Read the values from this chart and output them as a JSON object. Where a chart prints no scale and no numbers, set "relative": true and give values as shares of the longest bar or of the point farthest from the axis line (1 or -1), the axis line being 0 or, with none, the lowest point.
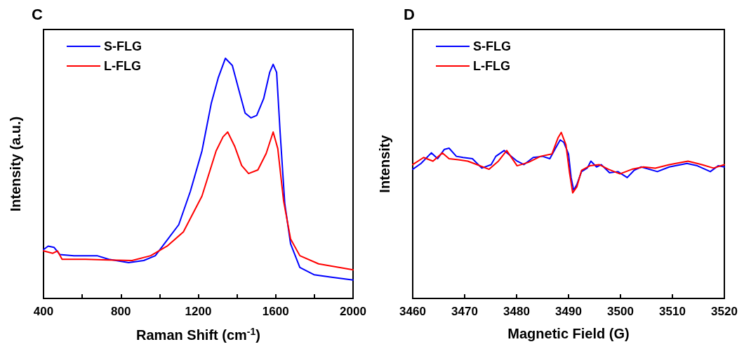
{
  "chart_data": [
    {
      "type": "line",
      "title": "C",
      "xlabel": "Raman Shift (cm$^{-1}$)",
      "ylabel": "Intensity (a.u.)",
      "relative": true,
      "legend": "top left",
      "grid": false,
      "marker": "none",
      "line_style": "solid",
      "xlim": [
        400,
        2000
      ],
      "xticks": [
        400,
        {
          "value": 600,
          "label": null
        },
        800,
        {
          "value": 1000,
          "label": null
        },
        1200,
        {
          "value": 1400,
          "label": null
        },
        1600,
        {
          "value": 1800,
          "label": null
        },
        2000
      ],
      "series": [
        {
          "name": "S-FLG",
          "color": "#0000ff",
          "x": [
            400,
            424,
            454,
            484,
            557,
            677,
            737,
            840,
            918,
            978,
            1039,
            1099,
            1159,
            1219,
            1267,
            1304,
            1340,
            1376,
            1412,
            1442,
            1472,
            1502,
            1538,
            1569,
            1587,
            1605,
            1623,
            1647,
            1677,
            1725,
            1798,
            1882,
            2000
          ],
          "values": [
            0.203,
            0.218,
            0.213,
            0.183,
            0.178,
            0.178,
            0.163,
            0.149,
            0.158,
            0.178,
            0.243,
            0.307,
            0.446,
            0.614,
            0.812,
            0.921,
            1.0,
            0.97,
            0.861,
            0.772,
            0.752,
            0.762,
            0.832,
            0.941,
            0.975,
            0.941,
            0.693,
            0.396,
            0.228,
            0.129,
            0.099,
            0.089,
            0.077
          ]
        },
        {
          "name": "L-FLG",
          "color": "#ff0000",
          "x": [
            400,
            448,
            472,
            496,
            617,
            737,
            858,
            954,
            1039,
            1123,
            1219,
            1292,
            1328,
            1352,
            1388,
            1424,
            1460,
            1508,
            1551,
            1587,
            1611,
            1641,
            1677,
            1725,
            1822,
            2000
          ],
          "values": [
            0.198,
            0.188,
            0.198,
            0.163,
            0.163,
            0.16,
            0.158,
            0.178,
            0.218,
            0.277,
            0.426,
            0.614,
            0.673,
            0.693,
            0.634,
            0.554,
            0.52,
            0.535,
            0.604,
            0.693,
            0.624,
            0.406,
            0.248,
            0.178,
            0.144,
            0.119
          ]
        }
      ]
    },
    {
      "type": "line",
      "title": "D",
      "xlabel": "Magnetic Field (G)",
      "ylabel": "Intensity",
      "relative": true,
      "legend": "top left",
      "grid": false,
      "marker": "none",
      "line_style": "solid",
      "xlim": [
        3460,
        3520
      ],
      "xticks": [
        3460,
        3470,
        3480,
        3490,
        3500,
        3510,
        3520
      ],
      "series": [
        {
          "name": "S-FLG",
          "color": "#0000ff",
          "x": [
            3460,
            3461.6,
            3463.6,
            3464.8,
            3466.1,
            3467,
            3468.4,
            3469.7,
            3471.5,
            3473.3,
            3475.1,
            3476,
            3477.6,
            3478.7,
            3480.1,
            3481.4,
            3483.2,
            3485,
            3486.4,
            3487.5,
            3488.4,
            3489.1,
            3490,
            3490.5,
            3491,
            3491.6,
            3492.5,
            3493.6,
            3494.3,
            3495.4,
            3496.3,
            3497.9,
            3499.5,
            3501.3,
            3502.6,
            3504,
            3507.1,
            3509.4,
            3512.8,
            3514.8,
            3517.3,
            3518.8,
            3520
          ],
          "values": [
            0.778,
            0.813,
            0.877,
            0.842,
            0.898,
            0.905,
            0.856,
            0.849,
            0.842,
            0.785,
            0.806,
            0.856,
            0.891,
            0.863,
            0.827,
            0.806,
            0.849,
            0.856,
            0.842,
            0.905,
            0.955,
            0.94,
            0.87,
            0.728,
            0.651,
            0.686,
            0.764,
            0.785,
            0.827,
            0.792,
            0.806,
            0.757,
            0.764,
            0.728,
            0.771,
            0.792,
            0.764,
            0.792,
            0.813,
            0.799,
            0.764,
            0.799,
            0.792
          ]
        },
        {
          "name": "L-FLG",
          "color": "#ff0000",
          "x": [
            3460,
            3462.1,
            3463.9,
            3465.7,
            3467,
            3468.8,
            3470.6,
            3472.4,
            3474.7,
            3476.5,
            3478.1,
            3480.1,
            3482.3,
            3484.6,
            3486.8,
            3488,
            3488.6,
            3489.5,
            3490.2,
            3490.8,
            3491.6,
            3492.5,
            3494.1,
            3495.9,
            3497.7,
            3499.9,
            3502.2,
            3504.4,
            3506.7,
            3509.4,
            3513,
            3515.7,
            3517.9,
            3520
          ],
          "values": [
            0.806,
            0.849,
            0.827,
            0.877,
            0.842,
            0.835,
            0.827,
            0.806,
            0.778,
            0.827,
            0.891,
            0.799,
            0.82,
            0.856,
            0.87,
            0.969,
            1.0,
            0.926,
            0.756,
            0.636,
            0.672,
            0.771,
            0.799,
            0.806,
            0.778,
            0.75,
            0.778,
            0.792,
            0.785,
            0.806,
            0.827,
            0.806,
            0.785,
            0.806
          ]
        }
      ]
    }
  ]
}
